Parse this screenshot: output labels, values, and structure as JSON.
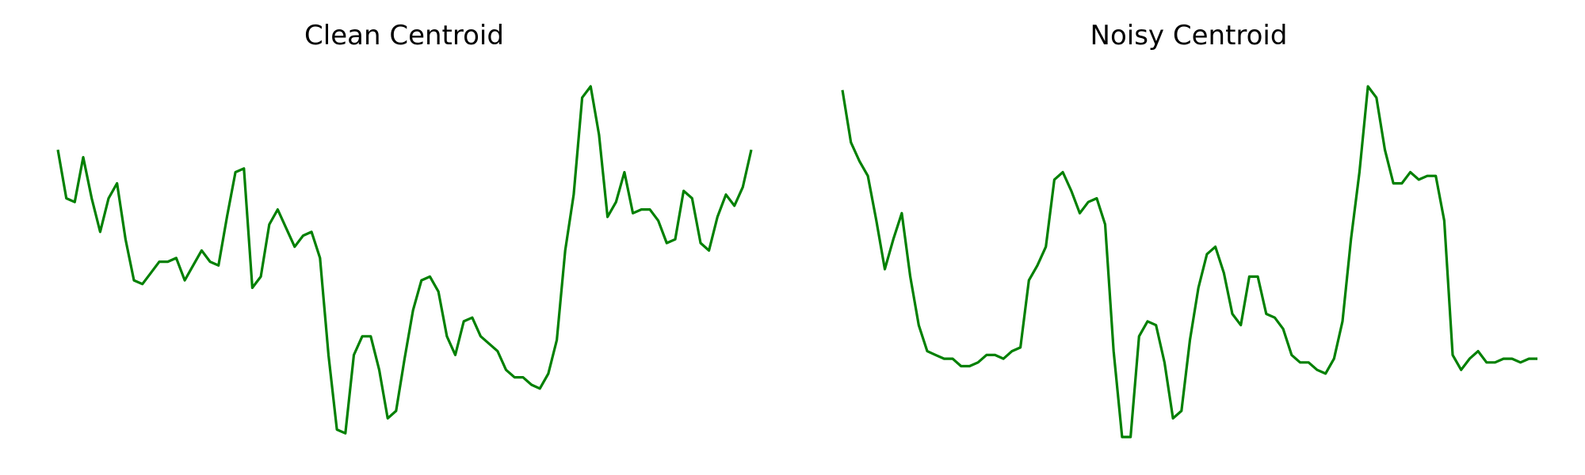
{
  "chart_data": [
    {
      "type": "line",
      "title": "Clean Centroid",
      "color": "#008000",
      "axis_visible": false,
      "grid": false,
      "x_range": [
        0,
        83
      ],
      "ylim": [
        0.03,
        1.0
      ],
      "series": [
        {
          "values": [
            0.8,
            0.67,
            0.66,
            0.78,
            0.67,
            0.58,
            0.67,
            0.71,
            0.56,
            0.45,
            0.44,
            0.47,
            0.5,
            0.5,
            0.51,
            0.45,
            0.49,
            0.53,
            0.5,
            0.49,
            0.62,
            0.74,
            0.75,
            0.43,
            0.46,
            0.6,
            0.64,
            0.59,
            0.54,
            0.57,
            0.58,
            0.51,
            0.25,
            0.05,
            0.04,
            0.25,
            0.3,
            0.3,
            0.21,
            0.08,
            0.1,
            0.24,
            0.37,
            0.45,
            0.46,
            0.42,
            0.3,
            0.25,
            0.34,
            0.35,
            0.3,
            0.28,
            0.26,
            0.21,
            0.19,
            0.19,
            0.17,
            0.16,
            0.2,
            0.29,
            0.53,
            0.68,
            0.94,
            0.97,
            0.84,
            0.62,
            0.66,
            0.74,
            0.63,
            0.64,
            0.64,
            0.61,
            0.55,
            0.56,
            0.69,
            0.67,
            0.55,
            0.53,
            0.62,
            0.68,
            0.65,
            0.7,
            0.8
          ]
        }
      ]
    },
    {
      "type": "line",
      "title": "Noisy Centroid",
      "color": "#008000",
      "axis_visible": false,
      "grid": false,
      "x_range": [
        0,
        83
      ],
      "ylim": [
        0.03,
        1.0
      ],
      "series": [
        {
          "values": [
            0.96,
            0.82,
            0.77,
            0.73,
            0.61,
            0.48,
            0.56,
            0.63,
            0.46,
            0.33,
            0.26,
            0.25,
            0.24,
            0.24,
            0.22,
            0.22,
            0.23,
            0.25,
            0.25,
            0.24,
            0.26,
            0.27,
            0.45,
            0.49,
            0.54,
            0.72,
            0.74,
            0.69,
            0.63,
            0.66,
            0.67,
            0.6,
            0.26,
            0.03,
            0.03,
            0.3,
            0.34,
            0.33,
            0.23,
            0.08,
            0.1,
            0.29,
            0.43,
            0.52,
            0.54,
            0.47,
            0.36,
            0.33,
            0.46,
            0.46,
            0.36,
            0.35,
            0.32,
            0.25,
            0.23,
            0.23,
            0.21,
            0.2,
            0.24,
            0.34,
            0.56,
            0.74,
            0.97,
            0.94,
            0.8,
            0.71,
            0.71,
            0.74,
            0.72,
            0.73,
            0.73,
            0.61,
            0.25,
            0.21,
            0.24,
            0.26,
            0.23,
            0.23,
            0.24,
            0.24,
            0.23,
            0.24,
            0.24
          ]
        }
      ]
    }
  ]
}
